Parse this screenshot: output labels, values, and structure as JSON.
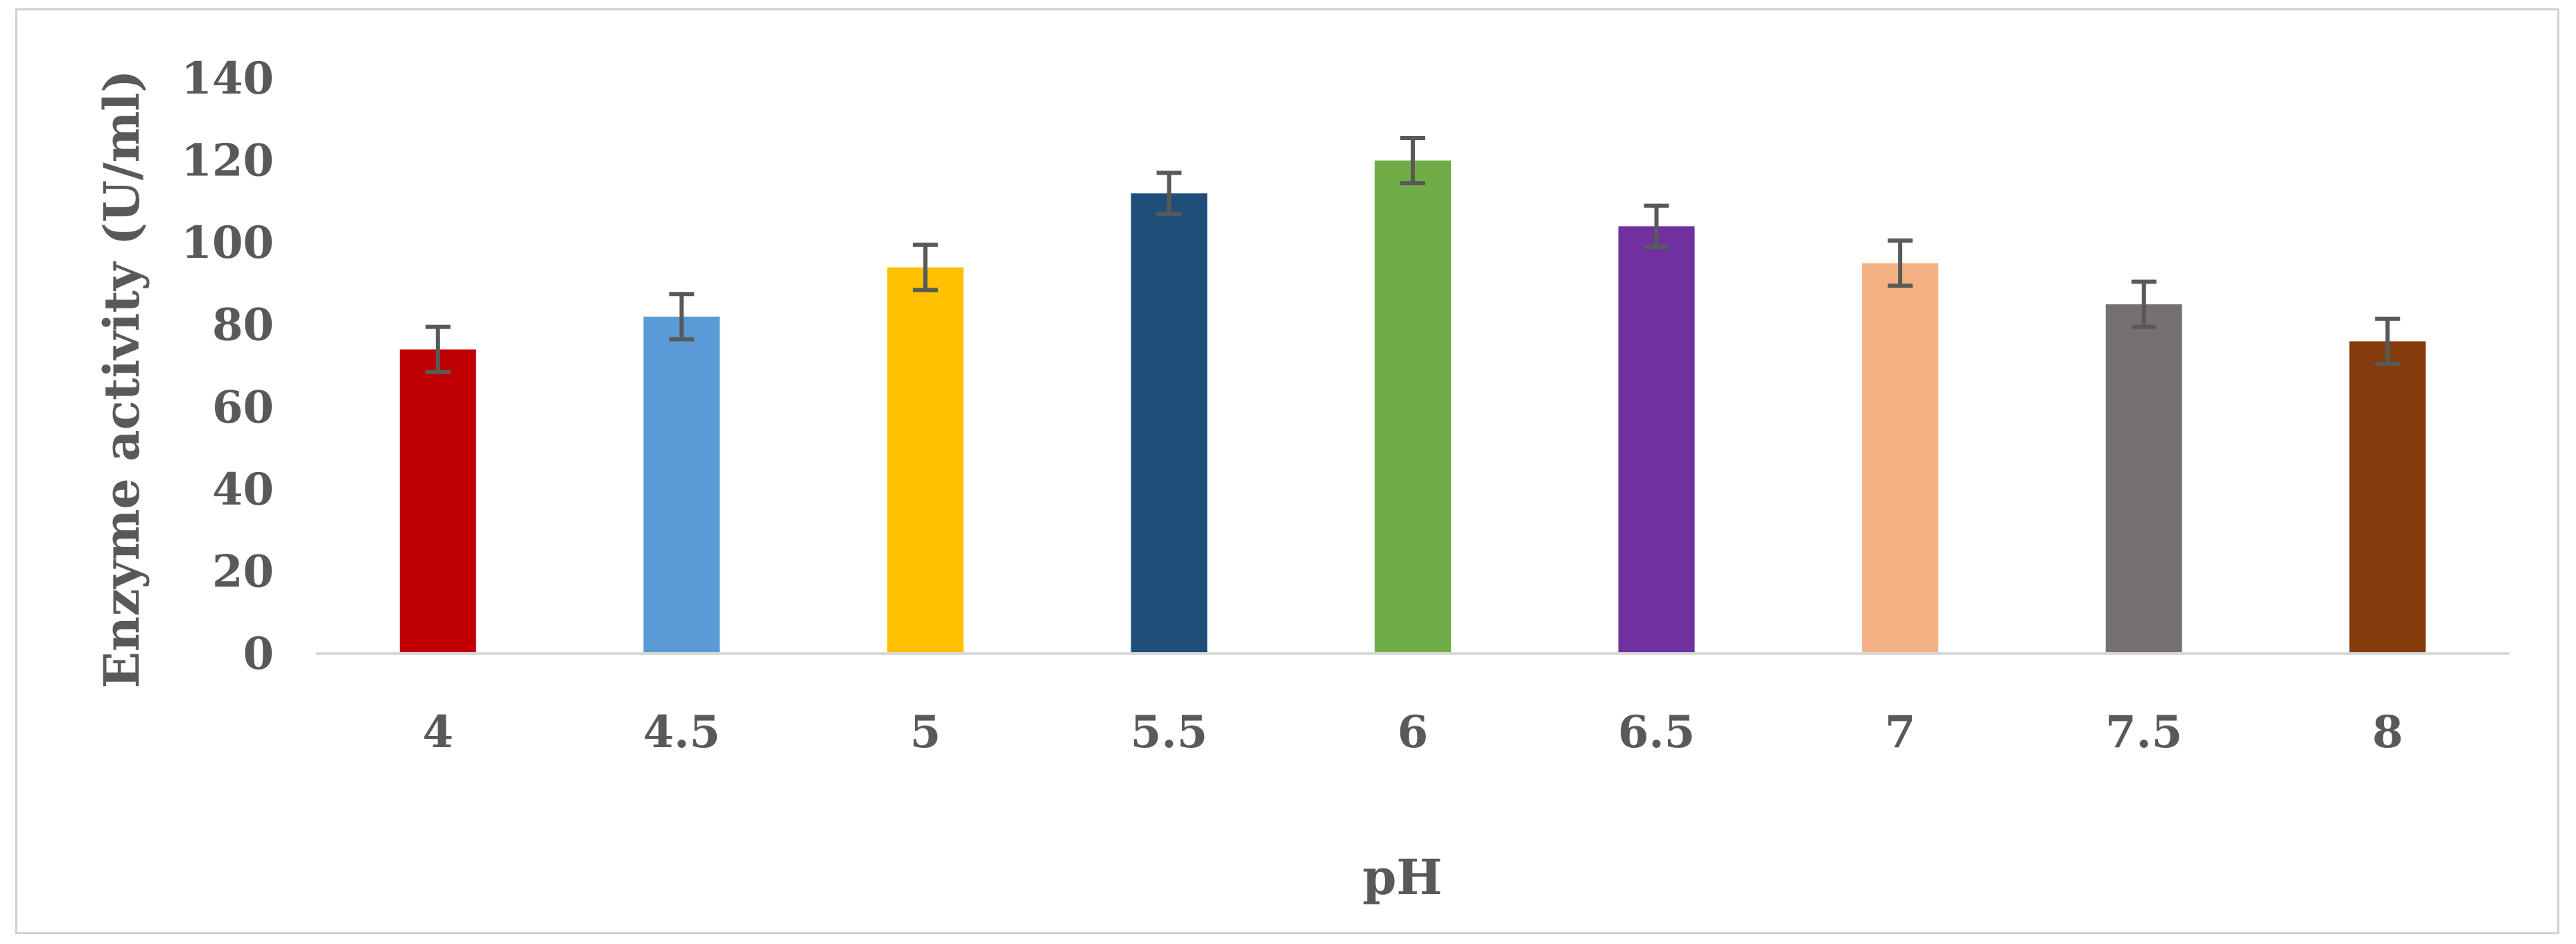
{
  "chart_data": {
    "type": "bar",
    "xlabel": "pH",
    "ylabel": "Enzyme activity (U/ml)",
    "ylim": [
      0,
      140
    ],
    "y_ticks": [
      0,
      20,
      40,
      60,
      80,
      100,
      120,
      140
    ],
    "grid": false,
    "legend": "none",
    "categories": [
      "4",
      "4.5",
      "5",
      "5.5",
      "6",
      "6.5",
      "7",
      "7.5",
      "8"
    ],
    "values": [
      74,
      82,
      94,
      112,
      120,
      104,
      95,
      85,
      76
    ],
    "errors": [
      5.5,
      5.5,
      5.5,
      5,
      5.5,
      5,
      5.5,
      5.5,
      5.5
    ],
    "colors": [
      "#c00000",
      "#5b9bd5",
      "#ffc000",
      "#1f4e79",
      "#70ad47",
      "#7030a0",
      "#f4b183",
      "#767171",
      "#843c0c"
    ],
    "axis_color": "#d9d9d9",
    "text_color": "#595959",
    "errorbar_color": "#595959"
  }
}
